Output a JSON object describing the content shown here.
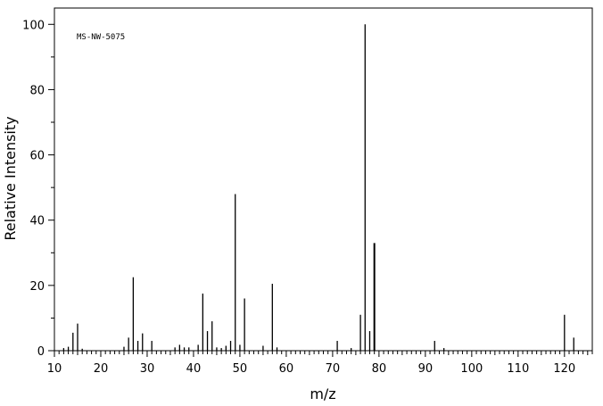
{
  "chart_data": {
    "type": "bar",
    "annotation": "MS-NW-5075",
    "xlabel": "m/z",
    "ylabel": "Relative Intensity",
    "xlim": [
      10,
      126
    ],
    "ylim": [
      0,
      105
    ],
    "x_major_ticks": [
      10,
      20,
      30,
      40,
      50,
      60,
      70,
      80,
      90,
      100,
      110,
      120
    ],
    "y_major_ticks": [
      0,
      20,
      40,
      60,
      80,
      100
    ],
    "grid": false,
    "peaks": [
      {
        "mz": 12,
        "intensity": 0.8
      },
      {
        "mz": 13,
        "intensity": 1.2
      },
      {
        "mz": 14,
        "intensity": 5.5
      },
      {
        "mz": 15,
        "intensity": 8.3
      },
      {
        "mz": 16,
        "intensity": 0.6
      },
      {
        "mz": 25,
        "intensity": 1.2
      },
      {
        "mz": 26,
        "intensity": 4.0
      },
      {
        "mz": 27,
        "intensity": 22.5
      },
      {
        "mz": 28,
        "intensity": 3.0
      },
      {
        "mz": 29,
        "intensity": 5.3
      },
      {
        "mz": 31,
        "intensity": 3.0
      },
      {
        "mz": 36,
        "intensity": 1.0
      },
      {
        "mz": 37,
        "intensity": 1.8
      },
      {
        "mz": 38,
        "intensity": 1.0
      },
      {
        "mz": 39,
        "intensity": 1.0
      },
      {
        "mz": 41,
        "intensity": 1.8
      },
      {
        "mz": 42,
        "intensity": 17.5
      },
      {
        "mz": 43,
        "intensity": 6.0
      },
      {
        "mz": 44,
        "intensity": 9.0
      },
      {
        "mz": 45,
        "intensity": 1.0
      },
      {
        "mz": 46,
        "intensity": 0.8
      },
      {
        "mz": 47,
        "intensity": 1.5
      },
      {
        "mz": 48,
        "intensity": 3.0
      },
      {
        "mz": 49,
        "intensity": 48.0
      },
      {
        "mz": 50,
        "intensity": 1.8
      },
      {
        "mz": 51,
        "intensity": 16.0
      },
      {
        "mz": 55,
        "intensity": 1.5
      },
      {
        "mz": 57,
        "intensity": 20.5
      },
      {
        "mz": 58,
        "intensity": 1.0
      },
      {
        "mz": 71,
        "intensity": 3.0
      },
      {
        "mz": 74,
        "intensity": 0.8
      },
      {
        "mz": 76,
        "intensity": 11.0
      },
      {
        "mz": 77,
        "intensity": 100.0
      },
      {
        "mz": 78,
        "intensity": 6.0
      },
      {
        "mz": 79,
        "intensity": 33.0
      },
      {
        "mz": 92,
        "intensity": 3.0
      },
      {
        "mz": 94,
        "intensity": 0.8
      },
      {
        "mz": 120,
        "intensity": 11.0
      },
      {
        "mz": 122,
        "intensity": 4.0
      }
    ]
  }
}
